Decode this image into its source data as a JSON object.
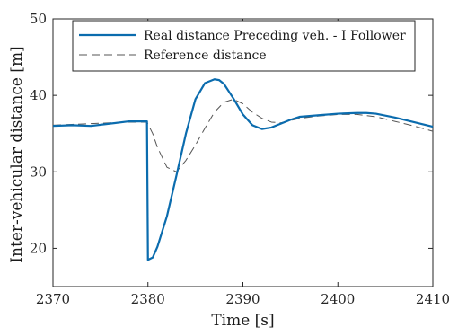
{
  "chart_data": {
    "type": "line",
    "xlabel": "Time [s]",
    "ylabel": "Inter-vehicular distance [m]",
    "xlim": [
      2370,
      2410
    ],
    "ylim": [
      15,
      50
    ],
    "xticks": [
      2370,
      2380,
      2390,
      2400,
      2410
    ],
    "yticks": [
      20,
      30,
      40,
      50
    ],
    "grid": false,
    "legend_position": "top-right",
    "series": [
      {
        "name": "Real distance Preceding veh. - I Follower",
        "color": "#0b6cae",
        "style": "solid",
        "x": [
          2370,
          2372,
          2374,
          2376,
          2378,
          2379.9,
          2380.0,
          2380.5,
          2381,
          2382,
          2383,
          2384,
          2385,
          2386,
          2387,
          2387.5,
          2388,
          2389,
          2390,
          2391,
          2392,
          2393,
          2394,
          2395,
          2396,
          2397,
          2398,
          2400,
          2402,
          2403,
          2404,
          2406,
          2408,
          2410
        ],
        "y": [
          36.0,
          36.1,
          36.0,
          36.3,
          36.6,
          36.6,
          18.5,
          18.8,
          20.2,
          24.2,
          29.5,
          35.0,
          39.5,
          41.6,
          42.1,
          42.0,
          41.5,
          39.6,
          37.5,
          36.1,
          35.6,
          35.8,
          36.3,
          36.8,
          37.2,
          37.3,
          37.4,
          37.6,
          37.7,
          37.7,
          37.6,
          37.1,
          36.5,
          35.9
        ]
      },
      {
        "name": "Reference distance",
        "color": "#555555",
        "style": "dashed",
        "x": [
          2370,
          2372,
          2374,
          2376,
          2378,
          2379.9,
          2380.5,
          2381,
          2382,
          2383,
          2384,
          2385,
          2386,
          2387,
          2388,
          2389,
          2390,
          2391,
          2392,
          2393,
          2394,
          2395,
          2396,
          2398,
          2400,
          2402,
          2404,
          2406,
          2408,
          2410
        ],
        "y": [
          36.1,
          36.2,
          36.3,
          36.4,
          36.5,
          36.5,
          35.0,
          33.2,
          30.6,
          30.0,
          31.5,
          33.5,
          35.7,
          37.8,
          39.1,
          39.5,
          38.9,
          37.8,
          37.0,
          36.5,
          36.4,
          36.7,
          37.0,
          37.3,
          37.5,
          37.5,
          37.2,
          36.6,
          36.0,
          35.3
        ]
      }
    ]
  }
}
